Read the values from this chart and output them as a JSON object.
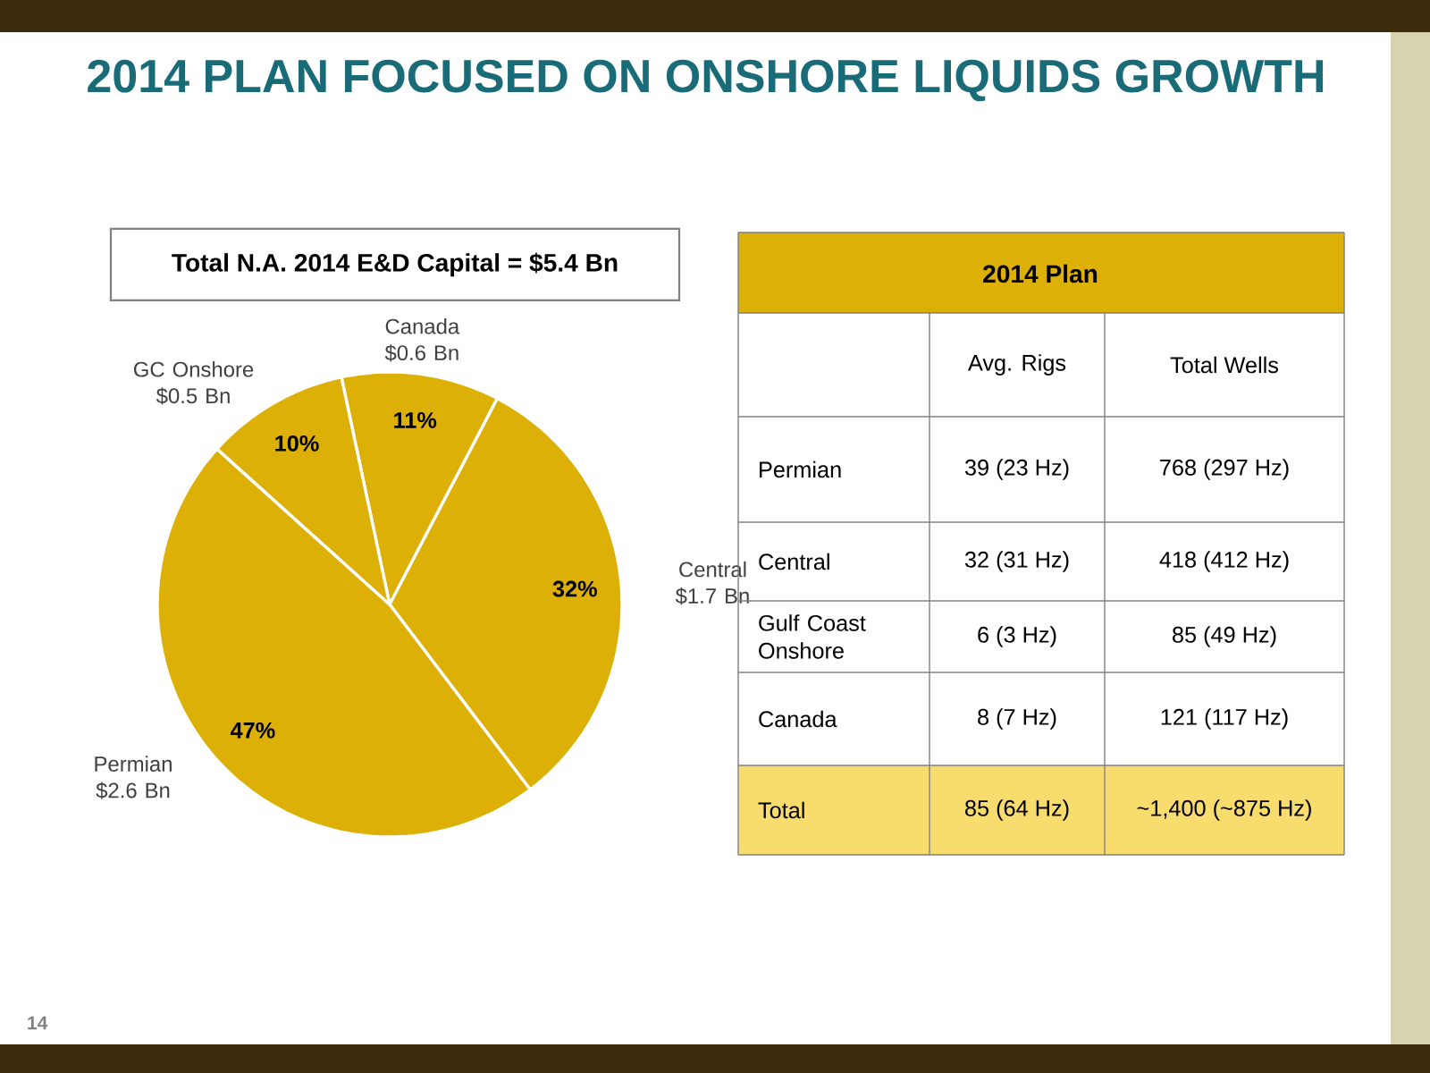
{
  "chart_data": [
    {
      "type": "pie",
      "title": "2014 PLAN FOCUSED ON ONSHORE LIQUIDS GROWTH",
      "subtitle": "Total N.A. 2014 E&D Capital = $5.4 Bn",
      "categories": [
        "Canada $0.6 Bn",
        "Central $1.7 Bn",
        "Permian $2.6 Bn",
        "GC Onshore $0.5 Bn"
      ],
      "values": [
        11,
        32,
        47,
        10
      ],
      "value_labels": [
        "11%",
        "32%",
        "47%",
        "10%"
      ],
      "colors": [
        "#ddb008",
        "#ddb008",
        "#ddb008",
        "#ddb008"
      ],
      "annotations": [
        "14"
      ]
    },
    {
      "type": "other",
      "title": "2014 Plan",
      "annotations": [
        "Avg. Rigs",
        "Total Wells",
        "Permian",
        "39 (23 Hz)",
        "768 (297 Hz)",
        "Central",
        "32 (31 Hz)",
        "418 (412 Hz)",
        "Gulf Coast Onshore",
        "6 (3 Hz)",
        "85 (49 Hz)",
        "Canada",
        "8 (7 Hz)",
        "121 (117 Hz)",
        "Total",
        "85 (64 Hz)",
        "~1,400 (~875 Hz)"
      ]
    }
  ]
}
